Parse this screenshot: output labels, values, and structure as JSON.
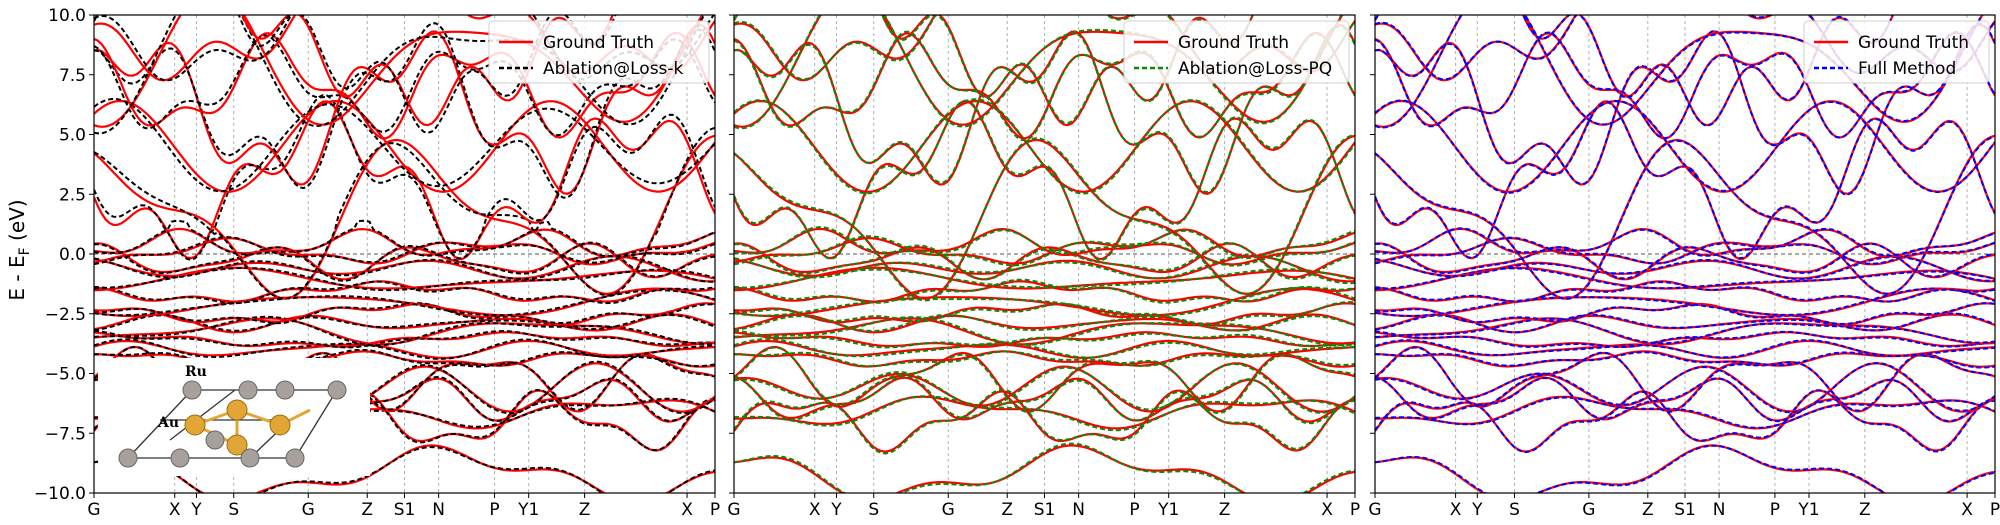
{
  "figure": {
    "ylabel": "E - E",
    "ylabel_sub": "F",
    "ylabel_unit": " (eV)"
  },
  "colors": {
    "ground_truth": "#ff0000",
    "ablation_k": "#000000",
    "ablation_pq": "#0a8a0a",
    "full_method": "#0000ff",
    "grid": "#b0b0b0",
    "fermi": "#555555",
    "au_atom": "#e2a636",
    "ru_atom": "#a8a09c"
  },
  "chart_data": [
    {
      "type": "line",
      "ylim": [
        -10,
        10
      ],
      "yticks": [
        10.0,
        7.5,
        5.0,
        2.5,
        0.0,
        -2.5,
        -5.0,
        -7.5,
        -10.0
      ],
      "ytick_labels": [
        "10.0",
        "7.5",
        "5.0",
        "2.5",
        "0.0",
        "−2.5",
        "−5.0",
        "−7.5",
        "−10.0"
      ],
      "kpath_labels": [
        "G",
        "X",
        "Y",
        "S",
        "G",
        "Z",
        "S1",
        "N",
        "P",
        "Y1",
        "Z",
        "X",
        "P"
      ],
      "kpath_positions": [
        0.0,
        0.13,
        0.165,
        0.225,
        0.345,
        0.44,
        0.5,
        0.555,
        0.645,
        0.7,
        0.79,
        0.955,
        1.0
      ],
      "legend": {
        "position": "upper right",
        "entries": [
          "Ground Truth",
          "Ablation@Loss-k"
        ]
      },
      "series": [
        {
          "name": "Ground Truth",
          "style": "solid"
        },
        {
          "name": "Ablation@Loss-k",
          "style": "dashed"
        }
      ],
      "inset": {
        "labels": [
          "Ru",
          "Au"
        ]
      }
    },
    {
      "type": "line",
      "ylim": [
        -10,
        10
      ],
      "kpath_labels": [
        "G",
        "X",
        "Y",
        "S",
        "G",
        "Z",
        "S1",
        "N",
        "P",
        "Y1",
        "Z",
        "X",
        "P"
      ],
      "kpath_positions": [
        0.0,
        0.13,
        0.165,
        0.225,
        0.345,
        0.44,
        0.5,
        0.555,
        0.645,
        0.7,
        0.79,
        0.955,
        1.0
      ],
      "legend": {
        "position": "upper right",
        "entries": [
          "Ground Truth",
          "Ablation@Loss-PQ"
        ]
      },
      "series": [
        {
          "name": "Ground Truth",
          "style": "solid"
        },
        {
          "name": "Ablation@Loss-PQ",
          "style": "dashed"
        }
      ]
    },
    {
      "type": "line",
      "ylim": [
        -10,
        10
      ],
      "kpath_labels": [
        "G",
        "X",
        "Y",
        "S",
        "G",
        "Z",
        "S1",
        "N",
        "P",
        "Y1",
        "Z",
        "X",
        "P"
      ],
      "kpath_positions": [
        0.0,
        0.13,
        0.165,
        0.225,
        0.345,
        0.44,
        0.5,
        0.555,
        0.645,
        0.7,
        0.79,
        0.955,
        1.0
      ],
      "legend": {
        "position": "upper right",
        "entries": [
          "Ground Truth",
          "Full Method"
        ]
      },
      "series": [
        {
          "name": "Ground Truth",
          "style": "solid"
        },
        {
          "name": "Full Method",
          "style": "dashed"
        }
      ]
    }
  ]
}
